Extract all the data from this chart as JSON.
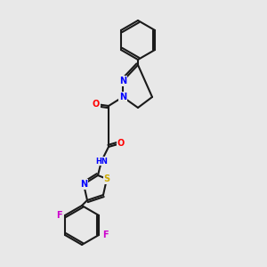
{
  "background_color": "#e8e8e8",
  "bond_color": "#1a1a1a",
  "atom_colors": {
    "N": "#0000ff",
    "O": "#ff0000",
    "S": "#ccaa00",
    "F": "#cc00cc",
    "H": "#555555",
    "C": "#1a1a1a"
  },
  "figsize": [
    3.0,
    3.0
  ],
  "dpi": 100
}
